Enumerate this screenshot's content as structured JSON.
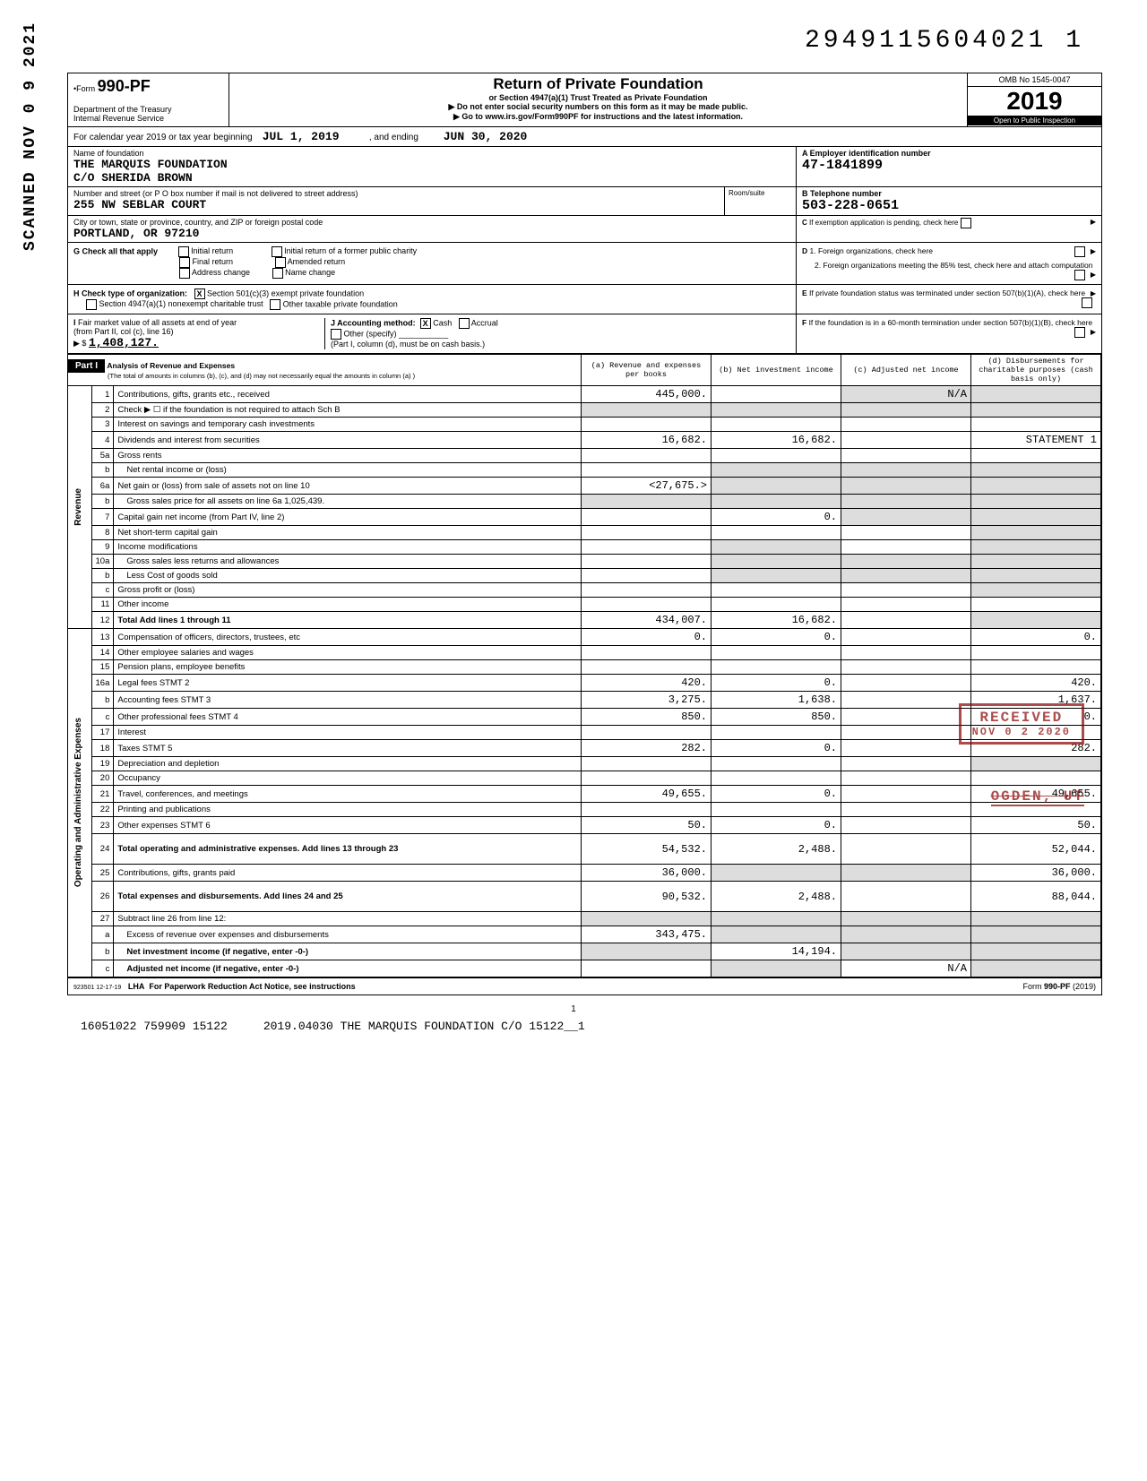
{
  "doc_number": "2949115604021  1",
  "vertical_stamp": "SCANNED NOV 0 9 2021",
  "header": {
    "form_prefix": "•Form",
    "form_number": "990-PF",
    "dept": "Department of the Treasury",
    "irs": "Internal Revenue Service",
    "title": "Return of Private Foundation",
    "subtitle1": "or Section 4947(a)(1) Trust Treated as Private Foundation",
    "subtitle2": "▶ Do not enter social security numbers on this form as it may be made public.",
    "subtitle3": "▶ Go to www.irs.gov/Form990PF for instructions and the latest information.",
    "omb": "OMB No 1545-0047",
    "year": "2019",
    "inspect": "Open to Public Inspection"
  },
  "cal_year": {
    "prefix": "For calendar year 2019 or tax year beginning",
    "begin": "JUL 1, 2019",
    "mid": ", and ending",
    "end": "JUN 30, 2020"
  },
  "name": {
    "label": "Name of foundation",
    "line1": "THE MARQUIS FOUNDATION",
    "line2": "C/O SHERIDA BROWN"
  },
  "ein": {
    "label": "A Employer identification number",
    "value": "47-1841899"
  },
  "addr": {
    "label": "Number and street (or P O box number if mail is not delivered to street address)",
    "value": "255 NW SEBLAR COURT",
    "room_label": "Room/suite"
  },
  "phone": {
    "label": "B Telephone number",
    "value": "503-228-0651"
  },
  "city": {
    "label": "City or town, state or province, country, and ZIP or foreign postal code",
    "value": "PORTLAND, OR  97210"
  },
  "pend": "C If exemption application is pending, check here",
  "g": {
    "label": "G  Check all that apply",
    "items": [
      "Initial return",
      "Final return",
      "Address change",
      "Initial return of a former public charity",
      "Amended return",
      "Name change"
    ]
  },
  "d": {
    "d1": "D  1. Foreign organizations, check here",
    "d2": "2. Foreign organizations meeting the 85% test, check here and attach computation"
  },
  "h": {
    "label": "H  Check type of organization:",
    "sec501": "Section 501(c)(3) exempt private foundation",
    "sec4947": "Section 4947(a)(1) nonexempt charitable trust",
    "other_tax": "Other taxable private foundation"
  },
  "e": "E  If private foundation status was terminated under section 507(b)(1)(A), check here",
  "i": {
    "label": "I  Fair market value of all assets at end of year",
    "sub": "(from Part II, col (c), line 16)",
    "arrow": "▶ $",
    "value": "1,408,127.",
    "j_label": "J  Accounting method:",
    "cash": "Cash",
    "accrual": "Accrual",
    "other": "Other (specify)",
    "note": "(Part I, column (d), must be on cash basis.)"
  },
  "f": "F  If the foundation is in a 60-month termination under section 507(b)(1)(B), check here",
  "part1": {
    "label": "Part I",
    "desc_bold": "Analysis of Revenue and Expenses",
    "desc": "(The total of amounts in columns (b), (c), and (d) may not necessarily equal the amounts in column (a) )",
    "col_a": "(a) Revenue and expenses per books",
    "col_b": "(b) Net investment income",
    "col_c": "(c) Adjusted net income",
    "col_d": "(d) Disbursements for charitable purposes (cash basis only)"
  },
  "side_revenue": "Revenue",
  "side_expenses": "Operating and Administrative Expenses",
  "rows": [
    {
      "n": "1",
      "d": "Contributions, gifts, grants etc., received",
      "a": "445,000.",
      "b": "",
      "c": "N/A",
      "dd": "",
      "shade_c": true,
      "shade_d": true
    },
    {
      "n": "2",
      "d": "Check ▶ ☐ if the foundation is not required to attach Sch B",
      "span": true
    },
    {
      "n": "3",
      "d": "Interest on savings and temporary cash investments",
      "a": "",
      "b": "",
      "c": "",
      "dd": ""
    },
    {
      "n": "4",
      "d": "Dividends and interest from securities",
      "a": "16,682.",
      "b": "16,682.",
      "c": "",
      "dd": "STATEMENT 1"
    },
    {
      "n": "5a",
      "d": "Gross rents",
      "a": "",
      "b": "",
      "c": "",
      "dd": ""
    },
    {
      "n": "b",
      "d": "Net rental income or (loss)",
      "sub": true,
      "a": "",
      "shade_bcd": true
    },
    {
      "n": "6a",
      "d": "Net gain or (loss) from sale of assets not on line 10",
      "a": "<27,675.>",
      "shade_bcd": true
    },
    {
      "n": "b",
      "d": "Gross sales price for all assets on line 6a          1,025,439.",
      "sub": true,
      "shade_all": true
    },
    {
      "n": "7",
      "d": "Capital gain net income (from Part IV, line 2)",
      "a": "",
      "b": "0.",
      "shade_cd": true
    },
    {
      "n": "8",
      "d": "Net short-term capital gain",
      "a": "",
      "b": "",
      "shade_d": true
    },
    {
      "n": "9",
      "d": "Income modifications",
      "shade_ab": true,
      "c": "",
      "shade_d": true
    },
    {
      "n": "10a",
      "d": "Gross sales less returns and allowances",
      "sub": true,
      "a": "",
      "shade_bcd": true
    },
    {
      "n": "b",
      "d": "Less Cost of goods sold",
      "sub": true,
      "a": "",
      "shade_bcd": true
    },
    {
      "n": "c",
      "d": "Gross profit or (loss)",
      "a": "",
      "b": "",
      "c": "",
      "shade_d": true
    },
    {
      "n": "11",
      "d": "Other income",
      "a": "",
      "b": "",
      "c": "",
      "dd": ""
    },
    {
      "n": "12",
      "d": "Total Add lines 1 through 11",
      "a": "434,007.",
      "b": "16,682.",
      "c": "",
      "shade_d": true,
      "bold": true
    },
    {
      "n": "13",
      "d": "Compensation of officers, directors, trustees, etc",
      "a": "0.",
      "b": "0.",
      "c": "",
      "dd": "0."
    },
    {
      "n": "14",
      "d": "Other employee salaries and wages",
      "a": "",
      "b": "",
      "c": "",
      "dd": ""
    },
    {
      "n": "15",
      "d": "Pension plans, employee benefits",
      "a": "",
      "b": "",
      "c": "",
      "dd": ""
    },
    {
      "n": "16a",
      "d": "Legal fees                                  STMT 2",
      "a": "420.",
      "b": "0.",
      "c": "",
      "dd": "420."
    },
    {
      "n": "b",
      "d": "Accounting fees                       STMT 3",
      "a": "3,275.",
      "b": "1,638.",
      "c": "",
      "dd": "1,637."
    },
    {
      "n": "c",
      "d": "Other professional fees           STMT 4",
      "a": "850.",
      "b": "850.",
      "c": "",
      "dd": "0."
    },
    {
      "n": "17",
      "d": "Interest",
      "a": "",
      "b": "",
      "c": "",
      "dd": ""
    },
    {
      "n": "18",
      "d": "Taxes                                         STMT 5",
      "a": "282.",
      "b": "0.",
      "c": "",
      "dd": "282."
    },
    {
      "n": "19",
      "d": "Depreciation and depletion",
      "a": "",
      "b": "",
      "c": "",
      "shade_d": true
    },
    {
      "n": "20",
      "d": "Occupancy",
      "a": "",
      "b": "",
      "c": "",
      "dd": ""
    },
    {
      "n": "21",
      "d": "Travel, conferences, and meetings",
      "a": "49,655.",
      "b": "0.",
      "c": "",
      "dd": "49,655."
    },
    {
      "n": "22",
      "d": "Printing and publications",
      "a": "",
      "b": "",
      "c": "",
      "dd": ""
    },
    {
      "n": "23",
      "d": "Other expenses                        STMT 6",
      "a": "50.",
      "b": "0.",
      "c": "",
      "dd": "50."
    },
    {
      "n": "24",
      "d": "Total operating and administrative expenses. Add lines 13 through 23",
      "a": "54,532.",
      "b": "2,488.",
      "c": "",
      "dd": "52,044.",
      "bold": true,
      "tall": true
    },
    {
      "n": "25",
      "d": "Contributions, gifts, grants paid",
      "a": "36,000.",
      "shade_bc": true,
      "dd": "36,000."
    },
    {
      "n": "26",
      "d": "Total expenses and disbursements. Add lines 24 and 25",
      "a": "90,532.",
      "b": "2,488.",
      "c": "",
      "dd": "88,044.",
      "bold": true,
      "tall": true
    },
    {
      "n": "27",
      "d": "Subtract line 26 from line 12:",
      "shade_all": true
    },
    {
      "n": "a",
      "d": "Excess of revenue over expenses and disbursements",
      "sub": true,
      "a": "343,475.",
      "shade_bcd": true
    },
    {
      "n": "b",
      "d": "Net investment income (if negative, enter -0-)",
      "sub": true,
      "bold_d": true,
      "shade_a": true,
      "b": "14,194.",
      "shade_cd": true
    },
    {
      "n": "c",
      "d": "Adjusted net income (if negative, enter -0-)",
      "sub": true,
      "bold_d": true,
      "shade_ab": true,
      "c": "N/A",
      "shade_d": true
    }
  ],
  "footer": {
    "left_code": "923501  12-17-19",
    "lha": "LHA",
    "notice": "For Paperwork Reduction Act Notice, see instructions",
    "form": "Form 990-PF (2019)",
    "page": "1",
    "batch_left": "16051022 759909 15122",
    "batch_right": "2019.04030 THE MARQUIS FOUNDATION C/O  15122__1"
  },
  "stamps": {
    "received": "RECEIVED",
    "date": "NOV 0 2 2020",
    "ogden": "OGDEN, UT"
  }
}
